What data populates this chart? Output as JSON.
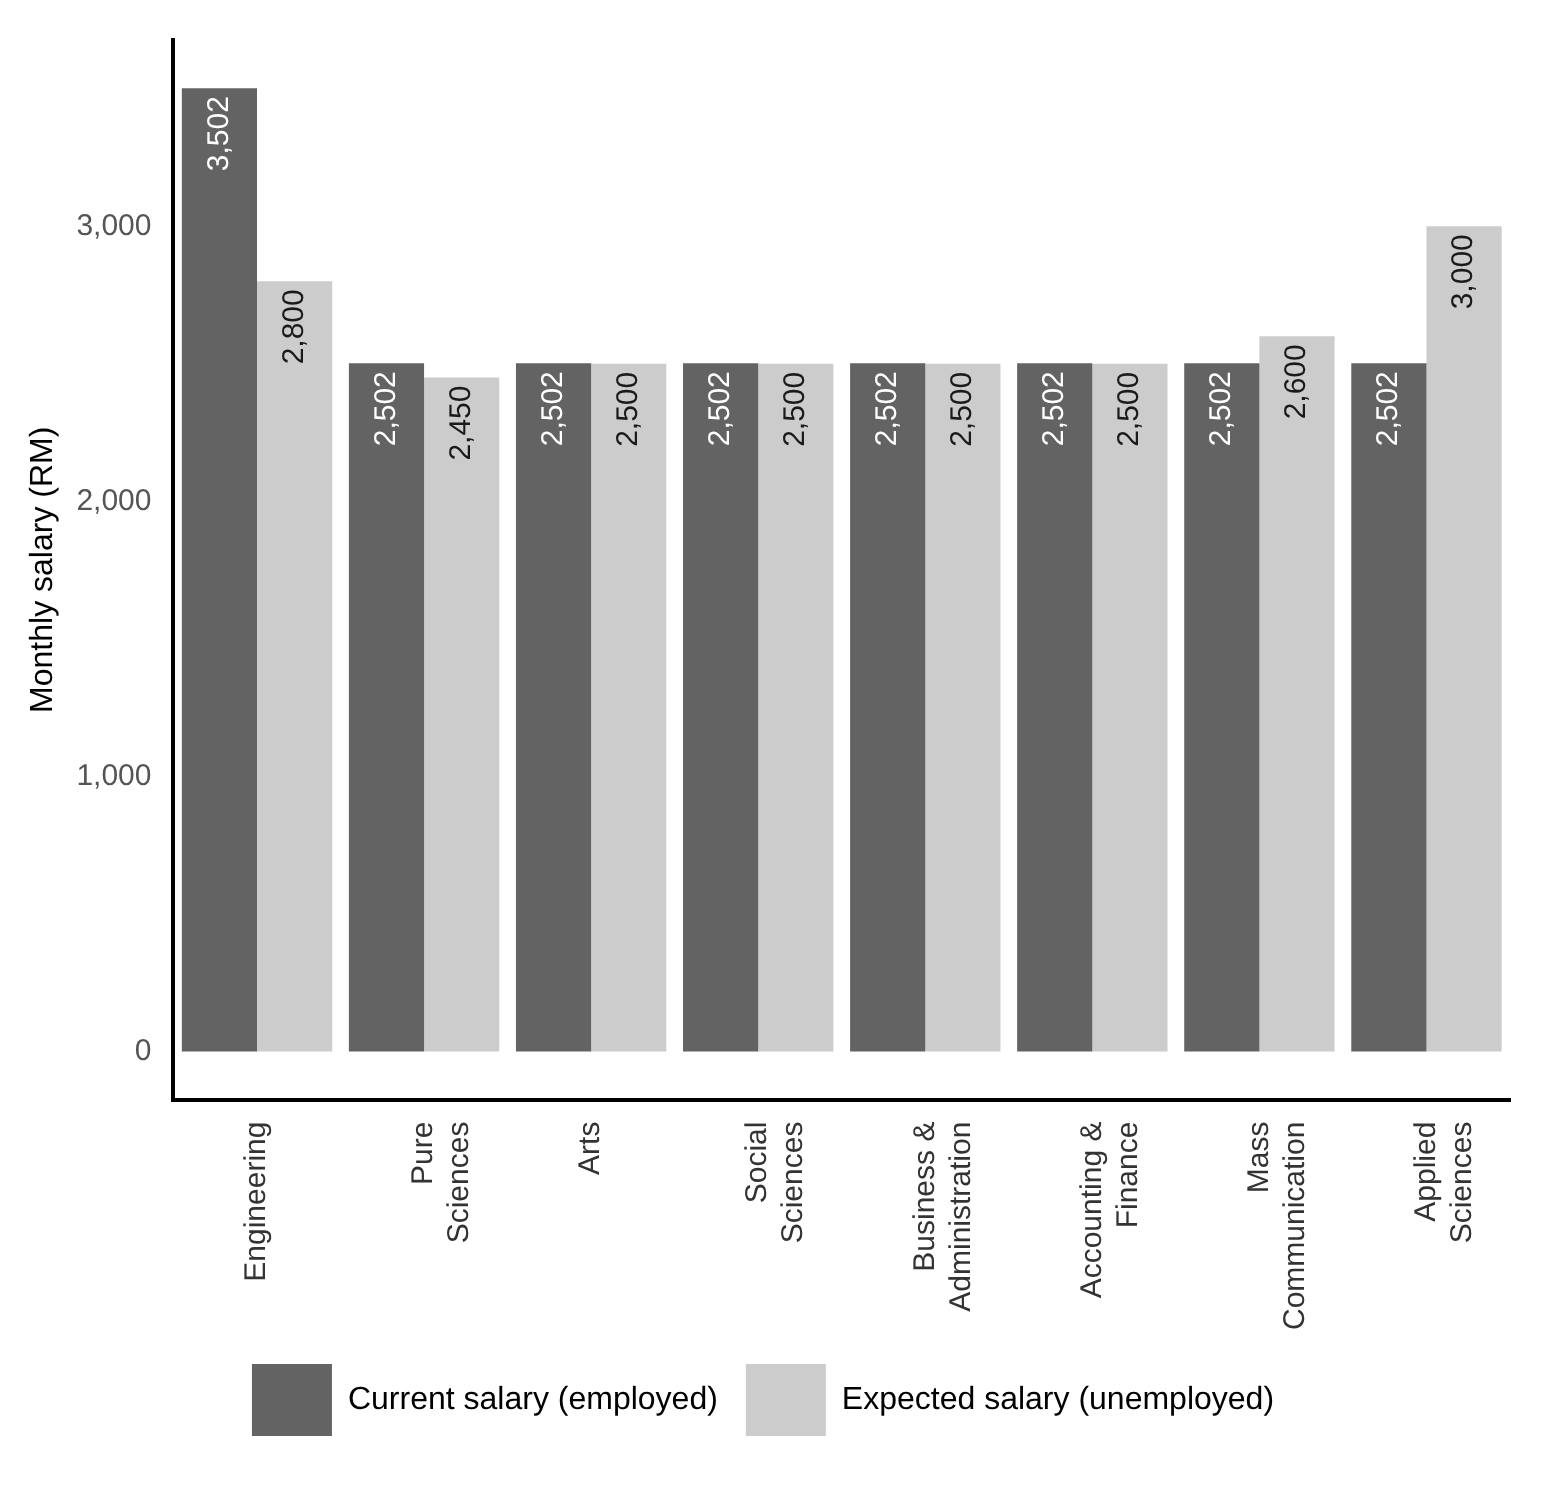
{
  "chart_data": {
    "type": "bar",
    "ylabel": "Monthly salary (RM)",
    "categories": [
      "Engineering",
      "Pure Sciences",
      "Arts",
      "Social Sciences",
      "Business & Administration",
      "Accounting & Finance",
      "Mass Communication",
      "Applied Sciences"
    ],
    "series": [
      {
        "name": "Current salary (employed)",
        "color": "#636363",
        "values": [
          3502,
          2502,
          2502,
          2502,
          2502,
          2502,
          2502,
          2502
        ],
        "value_labels": [
          "3,502",
          "2,502",
          "2,502",
          "2,502",
          "2,502",
          "2,502",
          "2,502",
          "2,502"
        ]
      },
      {
        "name": "Expected salary (unemployed)",
        "color": "#cccccc",
        "values": [
          2800,
          2450,
          2500,
          2500,
          2500,
          2500,
          2600,
          3000
        ],
        "value_labels": [
          "2,800",
          "2,450",
          "2,500",
          "2,500",
          "2,500",
          "2,500",
          "2,600",
          "3,000"
        ]
      }
    ],
    "ylim": [
      -175,
      3677
    ],
    "yticks": [
      {
        "value": 0,
        "label": "0"
      },
      {
        "value": 1000,
        "label": "1,000"
      },
      {
        "value": 2000,
        "label": "2,000"
      },
      {
        "value": 3000,
        "label": "3,000"
      }
    ],
    "grid": false,
    "legend": "bottom"
  }
}
